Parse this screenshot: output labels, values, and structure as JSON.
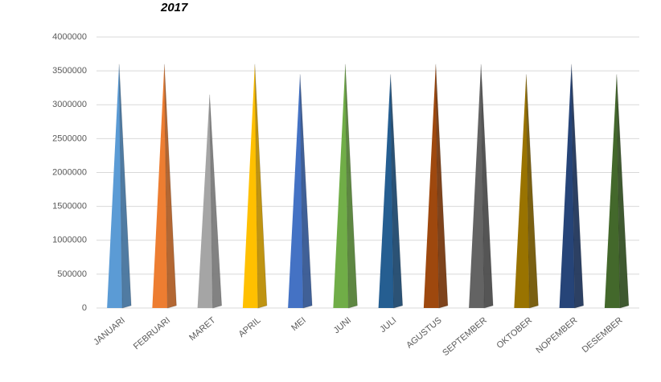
{
  "chart_data": {
    "type": "pyramid",
    "title": "2017",
    "categories": [
      "JANUARI",
      "FEBRUARI",
      "MARET",
      "APRIL",
      "MEI",
      "JUNI",
      "JULI",
      "AGUSTUS",
      "SEPTEMBER",
      "OKTOBER",
      "NOPEMBER",
      "DESEMBER"
    ],
    "values": [
      3600000,
      3600000,
      3150000,
      3600000,
      3450000,
      3600000,
      3450000,
      3600000,
      3600000,
      3450000,
      3600000,
      3450000
    ],
    "colors": [
      "#5b9bd5",
      "#ed7d31",
      "#a5a5a5",
      "#ffc000",
      "#4472c4",
      "#70ad47",
      "#255e91",
      "#9e480e",
      "#636363",
      "#997300",
      "#264478",
      "#43682b"
    ],
    "ylim": [
      0,
      4000000
    ],
    "yticks": [
      0,
      500000,
      1000000,
      1500000,
      2000000,
      2500000,
      3000000,
      3500000,
      4000000
    ],
    "grid": true
  }
}
